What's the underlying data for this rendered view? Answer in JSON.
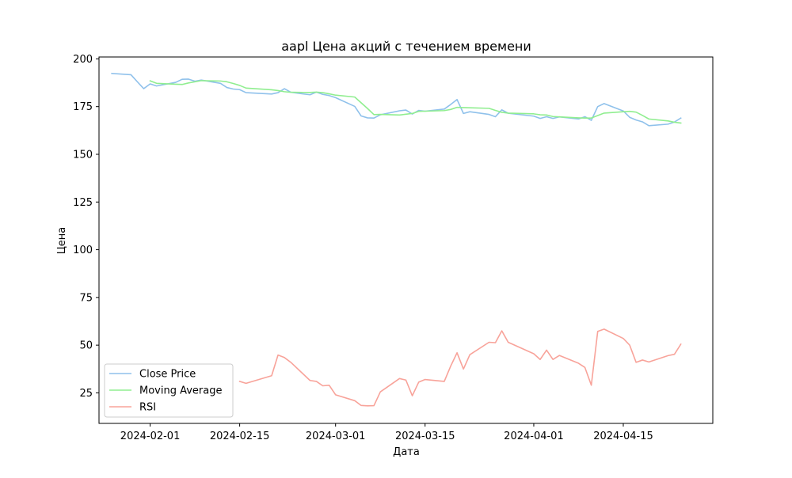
{
  "chart_data": {
    "type": "line",
    "title": "aapl Цена акций с течением времени",
    "xlabel": "Дата",
    "ylabel": "Цена",
    "x_type": "date",
    "xlim": [
      "2024-01-24",
      "2024-04-29"
    ],
    "ylim": [
      9,
      201
    ],
    "x_ticks": [
      "2024-02-01",
      "2024-02-15",
      "2024-03-01",
      "2024-03-15",
      "2024-04-01",
      "2024-04-15"
    ],
    "y_ticks": [
      25,
      50,
      75,
      100,
      125,
      150,
      175,
      200
    ],
    "grid": false,
    "legend_position": "lower-left",
    "series": [
      {
        "name": "Close Price",
        "color": "#8fc1eb",
        "points": [
          [
            "2024-01-26",
            192.4
          ],
          [
            "2024-01-29",
            191.7
          ],
          [
            "2024-01-30",
            188.0
          ],
          [
            "2024-01-31",
            184.4
          ],
          [
            "2024-02-01",
            186.9
          ],
          [
            "2024-02-02",
            185.8
          ],
          [
            "2024-02-05",
            187.7
          ],
          [
            "2024-02-06",
            189.3
          ],
          [
            "2024-02-07",
            189.4
          ],
          [
            "2024-02-08",
            188.3
          ],
          [
            "2024-02-09",
            188.9
          ],
          [
            "2024-02-12",
            187.2
          ],
          [
            "2024-02-13",
            185.0
          ],
          [
            "2024-02-14",
            184.2
          ],
          [
            "2024-02-15",
            183.9
          ],
          [
            "2024-02-16",
            182.3
          ],
          [
            "2024-02-20",
            181.6
          ],
          [
            "2024-02-21",
            182.3
          ],
          [
            "2024-02-22",
            184.4
          ],
          [
            "2024-02-23",
            182.5
          ],
          [
            "2024-02-26",
            181.2
          ],
          [
            "2024-02-27",
            182.6
          ],
          [
            "2024-02-28",
            181.4
          ],
          [
            "2024-02-29",
            180.8
          ],
          [
            "2024-03-01",
            179.7
          ],
          [
            "2024-03-04",
            175.1
          ],
          [
            "2024-03-05",
            170.1
          ],
          [
            "2024-03-06",
            169.1
          ],
          [
            "2024-03-07",
            169.0
          ],
          [
            "2024-03-08",
            170.7
          ],
          [
            "2024-03-11",
            172.8
          ],
          [
            "2024-03-12",
            173.2
          ],
          [
            "2024-03-13",
            171.1
          ],
          [
            "2024-03-14",
            173.0
          ],
          [
            "2024-03-15",
            172.6
          ],
          [
            "2024-03-18",
            173.7
          ],
          [
            "2024-03-19",
            176.1
          ],
          [
            "2024-03-20",
            178.7
          ],
          [
            "2024-03-21",
            171.4
          ],
          [
            "2024-03-22",
            172.3
          ],
          [
            "2024-03-25",
            170.9
          ],
          [
            "2024-03-26",
            169.7
          ],
          [
            "2024-03-27",
            173.3
          ],
          [
            "2024-03-28",
            171.5
          ],
          [
            "2024-04-01",
            170.0
          ],
          [
            "2024-04-02",
            168.8
          ],
          [
            "2024-04-03",
            169.7
          ],
          [
            "2024-04-04",
            168.8
          ],
          [
            "2024-04-05",
            169.6
          ],
          [
            "2024-04-08",
            168.5
          ],
          [
            "2024-04-09",
            169.7
          ],
          [
            "2024-04-10",
            167.8
          ],
          [
            "2024-04-11",
            175.0
          ],
          [
            "2024-04-12",
            176.6
          ],
          [
            "2024-04-15",
            172.7
          ],
          [
            "2024-04-16",
            169.4
          ],
          [
            "2024-04-17",
            168.0
          ],
          [
            "2024-04-18",
            167.0
          ],
          [
            "2024-04-19",
            165.0
          ],
          [
            "2024-04-22",
            165.8
          ],
          [
            "2024-04-23",
            166.9
          ],
          [
            "2024-04-24",
            169.0
          ]
        ]
      },
      {
        "name": "Moving Average",
        "color": "#90ee90",
        "points": [
          [
            "2024-02-01",
            188.5
          ],
          [
            "2024-02-02",
            187.2
          ],
          [
            "2024-02-05",
            186.7
          ],
          [
            "2024-02-06",
            186.6
          ],
          [
            "2024-02-07",
            187.4
          ],
          [
            "2024-02-08",
            188.0
          ],
          [
            "2024-02-09",
            188.6
          ],
          [
            "2024-02-12",
            188.4
          ],
          [
            "2024-02-13",
            188.0
          ],
          [
            "2024-02-14",
            187.1
          ],
          [
            "2024-02-15",
            186.1
          ],
          [
            "2024-02-16",
            184.7
          ],
          [
            "2024-02-20",
            183.8
          ],
          [
            "2024-02-21",
            183.4
          ],
          [
            "2024-02-22",
            182.8
          ],
          [
            "2024-02-23",
            182.5
          ],
          [
            "2024-02-26",
            182.4
          ],
          [
            "2024-02-27",
            182.6
          ],
          [
            "2024-02-28",
            182.3
          ],
          [
            "2024-02-29",
            181.7
          ],
          [
            "2024-03-01",
            181.0
          ],
          [
            "2024-03-04",
            180.0
          ],
          [
            "2024-03-05",
            177.0
          ],
          [
            "2024-03-06",
            174.0
          ],
          [
            "2024-03-07",
            170.8
          ],
          [
            "2024-03-08",
            170.9
          ],
          [
            "2024-03-11",
            170.6
          ],
          [
            "2024-03-12",
            171.0
          ],
          [
            "2024-03-13",
            171.4
          ],
          [
            "2024-03-14",
            172.5
          ],
          [
            "2024-03-15",
            172.6
          ],
          [
            "2024-03-18",
            172.9
          ],
          [
            "2024-03-19",
            173.5
          ],
          [
            "2024-03-20",
            174.6
          ],
          [
            "2024-03-21",
            174.5
          ],
          [
            "2024-03-22",
            174.4
          ],
          [
            "2024-03-25",
            174.1
          ],
          [
            "2024-03-26",
            173.0
          ],
          [
            "2024-03-27",
            172.0
          ],
          [
            "2024-03-28",
            171.6
          ],
          [
            "2024-04-01",
            171.2
          ],
          [
            "2024-04-02",
            170.7
          ],
          [
            "2024-04-03",
            170.6
          ],
          [
            "2024-04-04",
            169.8
          ],
          [
            "2024-04-05",
            169.6
          ],
          [
            "2024-04-08",
            169.1
          ],
          [
            "2024-04-09",
            169.0
          ],
          [
            "2024-04-10",
            169.0
          ],
          [
            "2024-04-11",
            170.3
          ],
          [
            "2024-04-12",
            171.6
          ],
          [
            "2024-04-15",
            172.3
          ],
          [
            "2024-04-16",
            172.5
          ],
          [
            "2024-04-17",
            172.1
          ],
          [
            "2024-04-18",
            170.4
          ],
          [
            "2024-04-19",
            168.5
          ],
          [
            "2024-04-22",
            167.5
          ],
          [
            "2024-04-23",
            166.8
          ],
          [
            "2024-04-24",
            166.4
          ]
        ]
      },
      {
        "name": "RSI",
        "color": "#f8a39a",
        "points": [
          [
            "2024-02-15",
            31.0
          ],
          [
            "2024-02-16",
            30.0
          ],
          [
            "2024-02-20",
            34.0
          ],
          [
            "2024-02-21",
            44.8
          ],
          [
            "2024-02-22",
            43.5
          ],
          [
            "2024-02-23",
            41.0
          ],
          [
            "2024-02-26",
            31.5
          ],
          [
            "2024-02-27",
            31.0
          ],
          [
            "2024-02-28",
            28.7
          ],
          [
            "2024-02-29",
            29.0
          ],
          [
            "2024-03-01",
            24.0
          ],
          [
            "2024-03-04",
            20.9
          ],
          [
            "2024-03-05",
            18.4
          ],
          [
            "2024-03-06",
            18.2
          ],
          [
            "2024-03-07",
            18.3
          ],
          [
            "2024-03-08",
            25.5
          ],
          [
            "2024-03-11",
            32.5
          ],
          [
            "2024-03-12",
            31.7
          ],
          [
            "2024-03-13",
            23.5
          ],
          [
            "2024-03-14",
            30.6
          ],
          [
            "2024-03-15",
            32.0
          ],
          [
            "2024-03-18",
            31.0
          ],
          [
            "2024-03-19",
            39.0
          ],
          [
            "2024-03-20",
            46.0
          ],
          [
            "2024-03-21",
            37.5
          ],
          [
            "2024-03-22",
            45.0
          ],
          [
            "2024-03-25",
            51.5
          ],
          [
            "2024-03-26",
            51.3
          ],
          [
            "2024-03-27",
            57.5
          ],
          [
            "2024-03-28",
            51.5
          ],
          [
            "2024-04-01",
            45.5
          ],
          [
            "2024-04-02",
            42.5
          ],
          [
            "2024-04-03",
            47.4
          ],
          [
            "2024-04-04",
            42.5
          ],
          [
            "2024-04-05",
            44.6
          ],
          [
            "2024-04-08",
            40.5
          ],
          [
            "2024-04-09",
            38.3
          ],
          [
            "2024-04-10",
            29.0
          ],
          [
            "2024-04-11",
            57.2
          ],
          [
            "2024-04-12",
            58.4
          ],
          [
            "2024-04-15",
            53.5
          ],
          [
            "2024-04-16",
            50.0
          ],
          [
            "2024-04-17",
            41.0
          ],
          [
            "2024-04-18",
            42.2
          ],
          [
            "2024-04-19",
            41.2
          ],
          [
            "2024-04-22",
            44.5
          ],
          [
            "2024-04-23",
            45.2
          ],
          [
            "2024-04-24",
            50.5
          ]
        ]
      }
    ]
  }
}
